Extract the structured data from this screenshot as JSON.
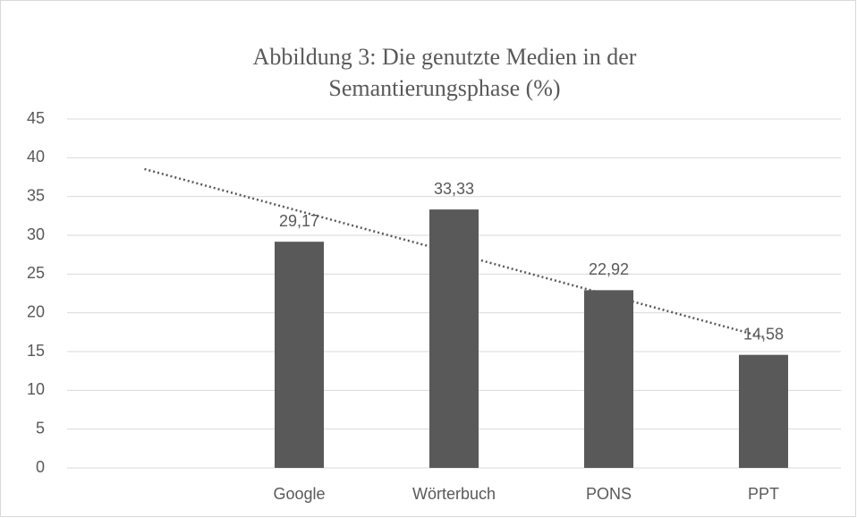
{
  "chart_data": {
    "type": "bar",
    "title": [
      "Abbildung 3: Die genutzte Medien  in der",
      "Semantierungsphase (%)"
    ],
    "categories": [
      null,
      "Google",
      "Wörterbuch",
      "PONS",
      "PPT"
    ],
    "values": [
      null,
      29.17,
      33.33,
      22.92,
      14.58
    ],
    "value_labels": [
      null,
      "29,17",
      "33,33",
      "22,92",
      "14,58"
    ],
    "color": "#595959",
    "ylim": [
      0,
      45
    ],
    "yticks": [
      0,
      5,
      10,
      15,
      20,
      25,
      30,
      35,
      40,
      45
    ],
    "grid": true,
    "trendline": "linear"
  }
}
